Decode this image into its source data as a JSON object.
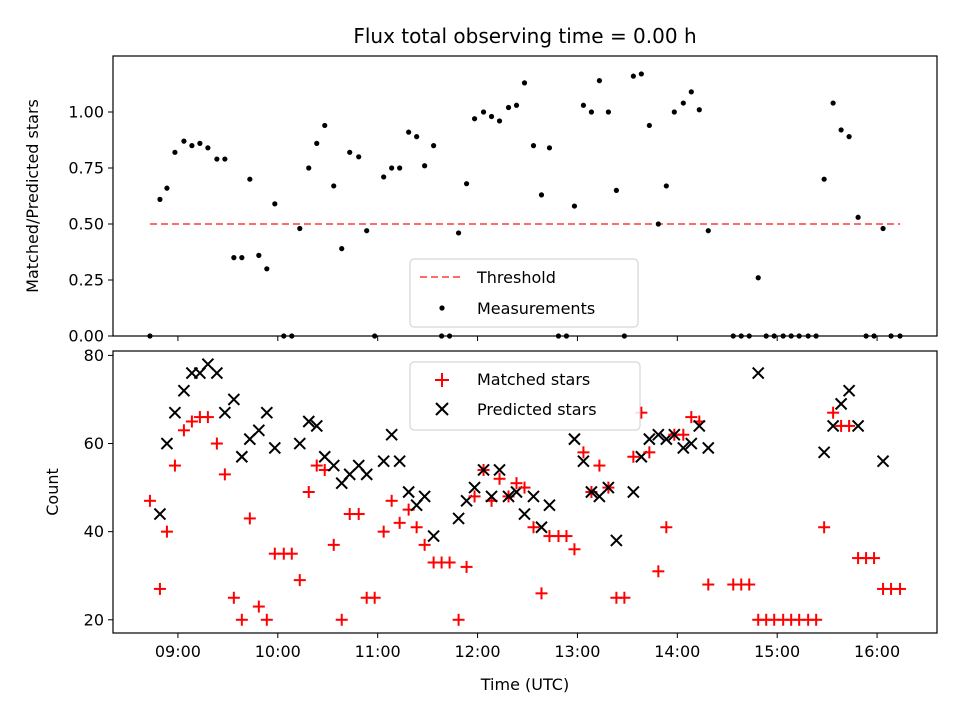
{
  "chart_data": [
    {
      "type": "scatter",
      "title": "Flux total observing time = 0.00 h",
      "ylabel": "Matched/Predicted stars",
      "xlabel": "",
      "xlim_hours": [
        8.35,
        16.6
      ],
      "ylim": [
        0,
        1.25
      ],
      "yticks": [
        "0.00",
        "0.25",
        "0.50",
        "0.75",
        "1.00"
      ],
      "threshold": {
        "name": "Threshold",
        "value": 0.5,
        "x_range": [
          8.72,
          16.23
        ],
        "color": "#ff6b6b"
      },
      "legend": [
        "Threshold",
        "Measurements"
      ],
      "legend_position": "lower center",
      "series": [
        {
          "name": "Measurements",
          "color": "#000000",
          "x": [
            8.72,
            8.82,
            8.89,
            8.97,
            9.06,
            9.14,
            9.22,
            9.3,
            9.39,
            9.47,
            9.56,
            9.64,
            9.72,
            9.81,
            9.89,
            9.97,
            10.06,
            10.14,
            10.22,
            10.31,
            10.39,
            10.47,
            10.56,
            10.64,
            10.72,
            10.81,
            10.89,
            10.97,
            11.06,
            11.14,
            11.22,
            11.31,
            11.39,
            11.47,
            11.56,
            11.64,
            11.72,
            11.81,
            11.89,
            11.97,
            12.06,
            12.14,
            12.22,
            12.31,
            12.39,
            12.47,
            12.56,
            12.64,
            12.72,
            12.81,
            12.89,
            12.97,
            13.06,
            13.14,
            13.22,
            13.31,
            13.39,
            13.47,
            13.56,
            13.64,
            13.72,
            13.81,
            13.89,
            13.97,
            14.06,
            14.14,
            14.22,
            14.31,
            14.56,
            14.64,
            14.72,
            14.81,
            14.89,
            14.97,
            15.06,
            15.14,
            15.22,
            15.31,
            15.39,
            15.47,
            15.56,
            15.64,
            15.72,
            15.81,
            15.89,
            15.97,
            16.06,
            16.14,
            16.23
          ],
          "y": [
            0.0,
            0.61,
            0.66,
            0.82,
            0.87,
            0.85,
            0.86,
            0.84,
            0.79,
            0.79,
            0.35,
            0.35,
            0.7,
            0.36,
            0.3,
            0.59,
            0.0,
            0.0,
            0.48,
            0.75,
            0.86,
            0.94,
            0.67,
            0.39,
            0.82,
            0.8,
            0.47,
            0.0,
            0.71,
            0.75,
            0.75,
            0.91,
            0.89,
            0.76,
            0.85,
            0.0,
            0.0,
            0.46,
            0.68,
            0.97,
            1.0,
            0.98,
            0.96,
            1.02,
            1.03,
            1.13,
            0.85,
            0.63,
            0.84,
            0.0,
            0.0,
            0.58,
            1.03,
            1.0,
            1.14,
            1.0,
            0.65,
            0.0,
            1.16,
            1.17,
            0.94,
            0.5,
            0.67,
            1.0,
            1.04,
            1.09,
            1.01,
            0.47,
            0.0,
            0.0,
            0.0,
            0.26,
            0.0,
            0.0,
            0.0,
            0.0,
            0.0,
            0.0,
            0.0,
            0.7,
            1.04,
            0.92,
            0.89,
            0.53,
            0.0,
            0.0,
            0.48,
            0.0,
            0.0
          ]
        }
      ]
    },
    {
      "type": "scatter",
      "title": "",
      "xlabel": "Time (UTC)",
      "ylabel": "Count",
      "xlim_hours": [
        8.35,
        16.6
      ],
      "ylim": [
        17,
        81
      ],
      "yticks": [
        "20",
        "40",
        "60",
        "80"
      ],
      "xticks": [
        {
          "hour": 9,
          "label": "09:00"
        },
        {
          "hour": 10,
          "label": "10:00"
        },
        {
          "hour": 11,
          "label": "11:00"
        },
        {
          "hour": 12,
          "label": "12:00"
        },
        {
          "hour": 13,
          "label": "13:00"
        },
        {
          "hour": 14,
          "label": "14:00"
        },
        {
          "hour": 15,
          "label": "15:00"
        },
        {
          "hour": 16,
          "label": "16:00"
        }
      ],
      "legend": [
        "Matched stars",
        "Predicted stars"
      ],
      "legend_position": "upper center",
      "x": [
        8.72,
        8.82,
        8.89,
        8.97,
        9.06,
        9.14,
        9.22,
        9.3,
        9.39,
        9.47,
        9.56,
        9.64,
        9.72,
        9.81,
        9.89,
        9.97,
        10.06,
        10.14,
        10.22,
        10.31,
        10.39,
        10.47,
        10.56,
        10.64,
        10.72,
        10.81,
        10.89,
        10.97,
        11.06,
        11.14,
        11.22,
        11.31,
        11.39,
        11.47,
        11.56,
        11.64,
        11.72,
        11.81,
        11.89,
        11.97,
        12.06,
        12.14,
        12.22,
        12.31,
        12.39,
        12.47,
        12.56,
        12.64,
        12.72,
        12.81,
        12.89,
        12.97,
        13.06,
        13.14,
        13.22,
        13.31,
        13.39,
        13.47,
        13.56,
        13.64,
        13.72,
        13.81,
        13.89,
        13.97,
        14.06,
        14.14,
        14.22,
        14.31,
        14.56,
        14.64,
        14.72,
        14.81,
        14.89,
        14.97,
        15.06,
        15.14,
        15.22,
        15.31,
        15.39,
        15.47,
        15.56,
        15.64,
        15.72,
        15.81,
        15.89,
        15.97,
        16.06,
        16.14,
        16.23
      ],
      "series": [
        {
          "name": "Matched stars",
          "marker": "+",
          "color": "#ff0000",
          "values": [
            47,
            27,
            40,
            55,
            63,
            65,
            66,
            66,
            60,
            53,
            25,
            20,
            43,
            23,
            20,
            35,
            35,
            35,
            29,
            49,
            55,
            54,
            37,
            20,
            44,
            44,
            25,
            25,
            40,
            47,
            42,
            45,
            41,
            37,
            33,
            33,
            33,
            20,
            32,
            48,
            54,
            47,
            52,
            48,
            51,
            50,
            41,
            26,
            39,
            39,
            39,
            36,
            58,
            49,
            55,
            50,
            25,
            25,
            57,
            67,
            58,
            31,
            41,
            62,
            62,
            66,
            65,
            28,
            28,
            28,
            28,
            20,
            20,
            20,
            20,
            20,
            20,
            20,
            20,
            41,
            67,
            64,
            64,
            34,
            34,
            34,
            27,
            27,
            27
          ]
        },
        {
          "name": "Predicted stars",
          "marker": "x",
          "color": "#000000",
          "values": [
            null,
            44,
            60,
            67,
            72,
            76,
            76,
            78,
            76,
            67,
            70,
            57,
            61,
            63,
            67,
            59,
            null,
            null,
            60,
            65,
            64,
            57,
            55,
            51,
            53,
            55,
            53,
            null,
            56,
            62,
            56,
            49,
            46,
            48,
            39,
            null,
            null,
            43,
            47,
            50,
            54,
            48,
            54,
            48,
            49,
            44,
            48,
            41,
            46,
            null,
            null,
            61,
            56,
            49,
            48,
            50,
            38,
            null,
            49,
            57,
            61,
            62,
            61,
            62,
            59,
            60,
            64,
            59,
            null,
            null,
            null,
            76,
            null,
            null,
            null,
            null,
            null,
            null,
            null,
            58,
            64,
            69,
            72,
            64,
            null,
            null,
            56,
            null,
            null
          ]
        }
      ]
    }
  ]
}
